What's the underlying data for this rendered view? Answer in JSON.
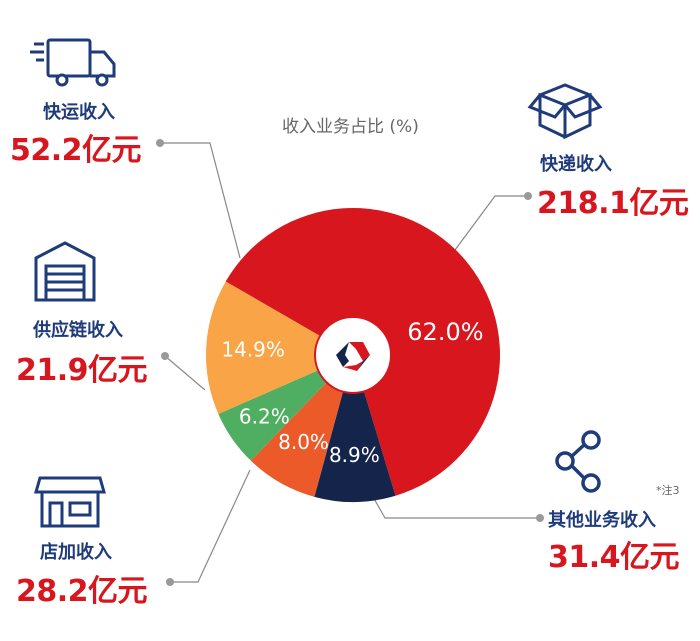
{
  "chart_data": {
    "type": "pie",
    "title": "收入业务占比 (%)",
    "slices": [
      {
        "name": "快递收入",
        "value": 62.0,
        "label": "62.0%",
        "amount": "218.1亿元",
        "color": "#d7161e"
      },
      {
        "name": "其他业务收入",
        "value": 8.9,
        "label": "8.9%",
        "amount": "31.4亿元",
        "color": "#14244a"
      },
      {
        "name": "店加收入",
        "value": 8.0,
        "label": "8.0%",
        "amount": "28.2亿元",
        "color": "#ec5a2a"
      },
      {
        "name": "供应链收入",
        "value": 6.2,
        "label": "6.2%",
        "amount": "21.9亿元",
        "color": "#4fae61"
      },
      {
        "name": "快运收入",
        "value": 14.9,
        "label": "14.9%",
        "amount": "52.2亿元",
        "color": "#f8a447"
      }
    ],
    "note": "*注3"
  }
}
